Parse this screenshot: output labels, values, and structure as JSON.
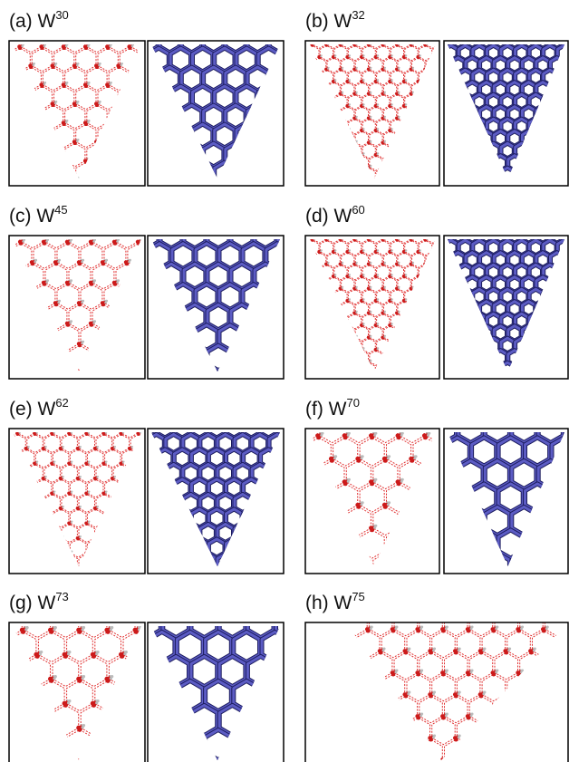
{
  "panels": [
    {
      "label": "(a) W",
      "superscript": "30"
    },
    {
      "label": "(b) W",
      "superscript": "32"
    },
    {
      "label": "(c) W",
      "superscript": "45"
    },
    {
      "label": "(d) W",
      "superscript": "60"
    },
    {
      "label": "(e) W",
      "superscript": "62"
    },
    {
      "label": "(f) W",
      "superscript": "70"
    },
    {
      "label": "(g) W",
      "superscript": "73"
    },
    {
      "label": "(h) W",
      "superscript": "75"
    }
  ]
}
